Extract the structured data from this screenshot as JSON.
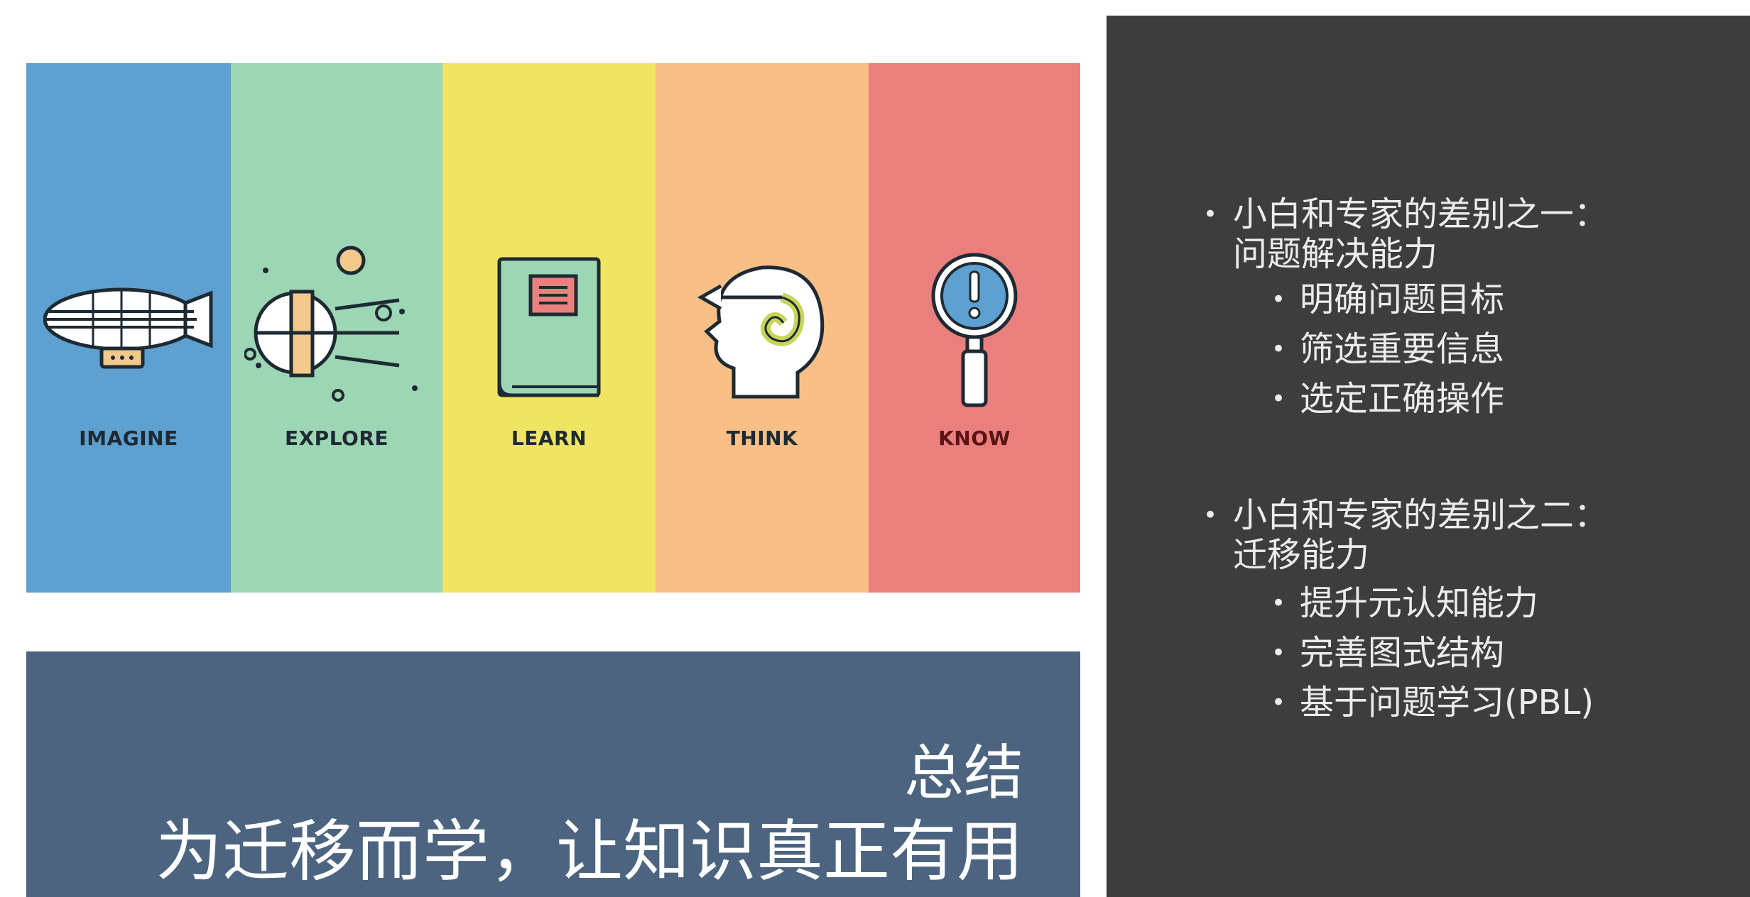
{
  "banner": {
    "stripes": [
      {
        "label": "IMAGINE",
        "color": "#5ea0cf",
        "icon": "airship-icon"
      },
      {
        "label": "EXPLORE",
        "color": "#9dd6b4",
        "icon": "satellite-icon"
      },
      {
        "label": "LEARN",
        "color": "#f0e463",
        "icon": "book-icon"
      },
      {
        "label": "THINK",
        "color": "#f8bf87",
        "icon": "head-icon"
      },
      {
        "label": "KNOW",
        "color": "#e9807e",
        "icon": "magnifier-icon"
      }
    ]
  },
  "summary": {
    "title": "总结",
    "subtitle": "为迁移而学，让知识真正有用",
    "background": "#4c6480"
  },
  "panel": {
    "background": "#3d3d3d",
    "sections": [
      {
        "heading_line1": "小白和专家的差别之一：",
        "heading_line2": "问题解决能力",
        "items": [
          "明确问题目标",
          "筛选重要信息",
          "选定正确操作"
        ]
      },
      {
        "heading_line1": "小白和专家的差别之二：",
        "heading_line2": "迁移能力",
        "items": [
          "提升元认知能力",
          "完善图式结构",
          "基于问题学习(PBL)"
        ]
      }
    ]
  }
}
